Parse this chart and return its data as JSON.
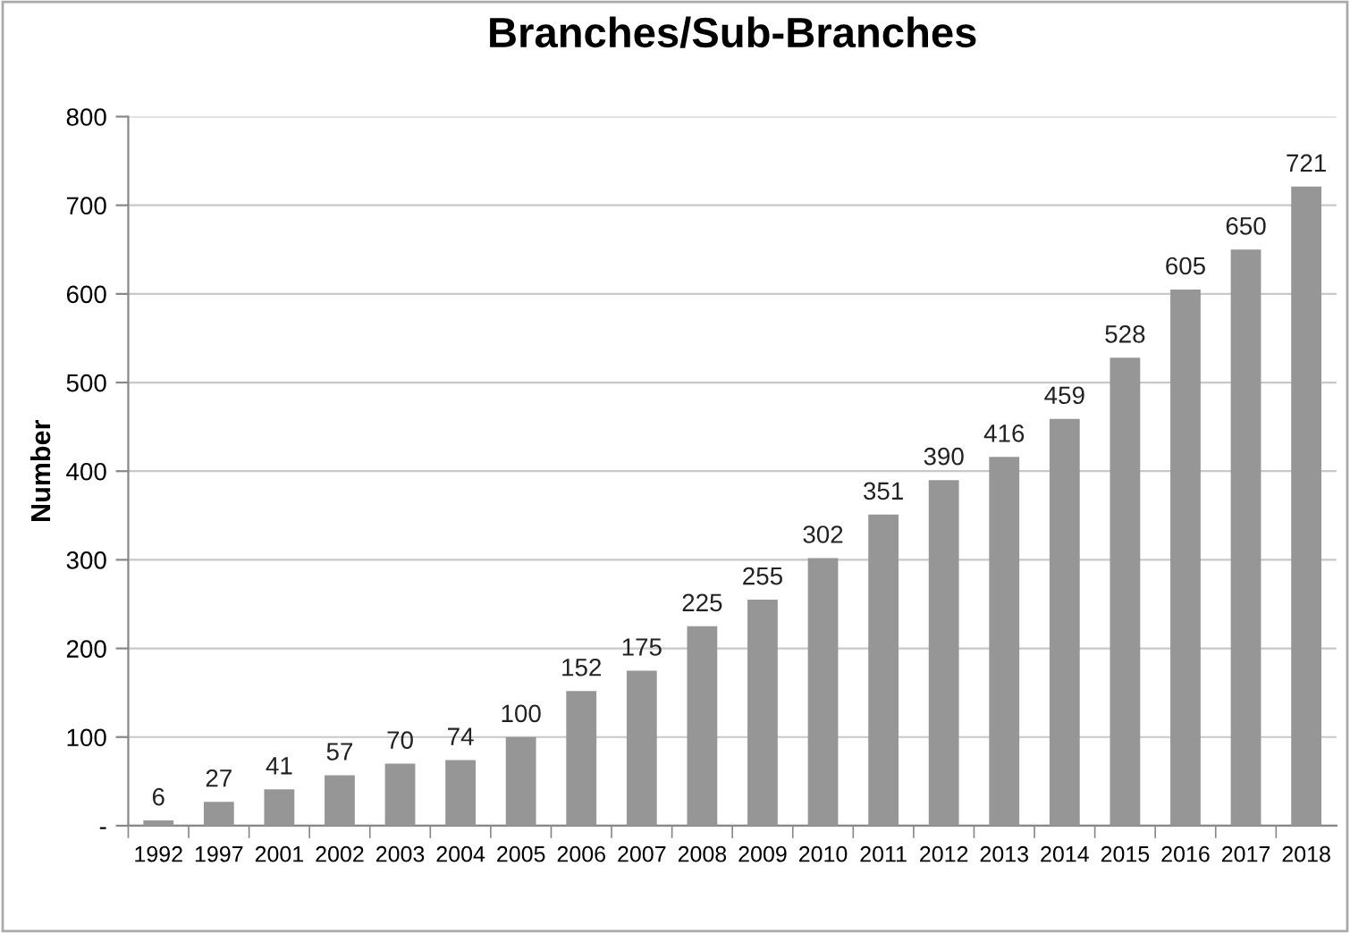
{
  "chart_data": {
    "type": "bar",
    "title": "Branches/Sub-Branches",
    "ylabel": "Number",
    "categories": [
      "1992",
      "1997",
      "2001",
      "2002",
      "2003",
      "2004",
      "2005",
      "2006",
      "2007",
      "2008",
      "2009",
      "2010",
      "2011",
      "2012",
      "2013",
      "2014",
      "2015",
      "2016",
      "2017",
      "2018"
    ],
    "values": [
      6,
      27,
      41,
      57,
      70,
      74,
      100,
      152,
      175,
      225,
      255,
      302,
      351,
      390,
      416,
      459,
      528,
      605,
      650,
      721
    ],
    "color": "#969696",
    "ylim": [
      0,
      800
    ],
    "yticks": [
      {
        "value": 0,
        "label": "-"
      },
      100,
      200,
      300,
      400,
      500,
      600,
      700,
      800
    ],
    "grid": "y",
    "data_labels": true
  }
}
